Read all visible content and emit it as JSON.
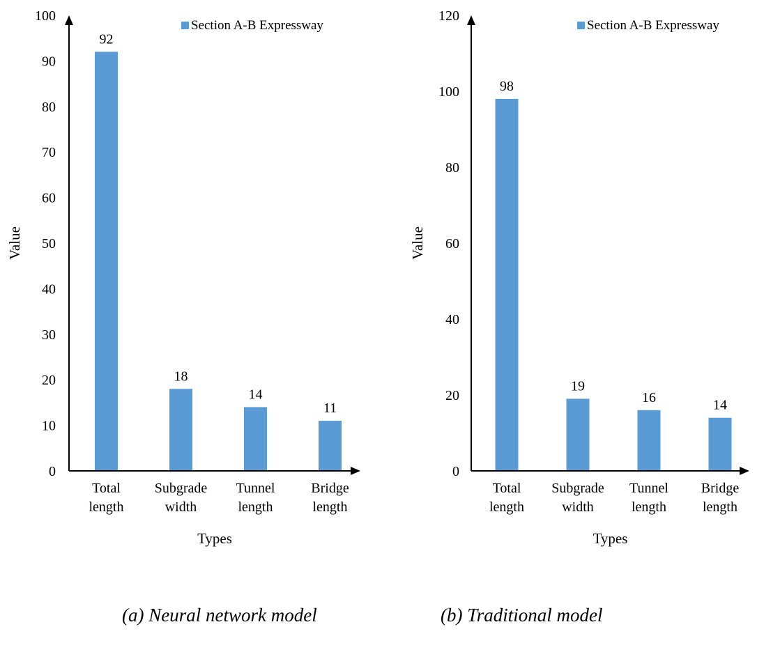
{
  "chart_data": [
    {
      "type": "bar",
      "categories": [
        [
          "Total",
          "length"
        ],
        [
          "Subgrade",
          "width"
        ],
        [
          "Tunnel",
          "length"
        ],
        [
          "Bridge",
          "length"
        ]
      ],
      "series": [
        {
          "name": "Section A-B Expressway",
          "values": [
            92,
            18,
            14,
            11
          ]
        }
      ],
      "xlabel": "Types",
      "ylabel": "Value",
      "ylim": [
        0,
        100
      ],
      "yticks": [
        0,
        10,
        20,
        30,
        40,
        50,
        60,
        70,
        80,
        90,
        100
      ],
      "legend": "top-right",
      "caption": "(a) Neural network model"
    },
    {
      "type": "bar",
      "categories": [
        [
          "Total",
          "length"
        ],
        [
          "Subgrade",
          "width"
        ],
        [
          "Tunnel",
          "length"
        ],
        [
          "Bridge",
          "length"
        ]
      ],
      "series": [
        {
          "name": "Section A-B Expressway",
          "values": [
            98,
            19,
            16,
            14
          ]
        }
      ],
      "xlabel": "Types",
      "ylabel": "Value",
      "ylim": [
        0,
        120
      ],
      "yticks": [
        0,
        20,
        40,
        60,
        80,
        100,
        120
      ],
      "legend": "top-right",
      "caption": "(b) Traditional model"
    }
  ],
  "colors": {
    "bar": "#5b9bd5",
    "axis": "#000000"
  }
}
